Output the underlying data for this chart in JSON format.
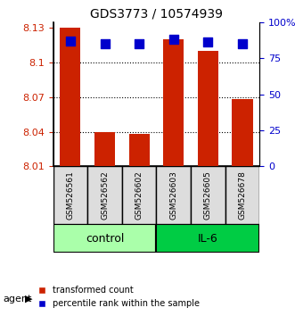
{
  "title": "GDS3773 / 10574939",
  "samples": [
    "GSM526561",
    "GSM526562",
    "GSM526602",
    "GSM526603",
    "GSM526605",
    "GSM526678"
  ],
  "groups": [
    "control",
    "control",
    "control",
    "IL-6",
    "IL-6",
    "IL-6"
  ],
  "transformed_counts": [
    8.13,
    8.04,
    8.038,
    8.12,
    8.11,
    8.068
  ],
  "percentile_ranks": [
    87,
    85,
    85,
    88,
    86,
    85
  ],
  "ylim_left": [
    8.01,
    8.135
  ],
  "ylim_right": [
    0,
    100
  ],
  "yticks_left": [
    8.01,
    8.04,
    8.07,
    8.1,
    8.13
  ],
  "ytick_labels_left": [
    "8.01",
    "8.04",
    "8.07",
    "8.1",
    "8.13"
  ],
  "yticks_right": [
    0,
    25,
    50,
    75,
    100
  ],
  "ytick_labels_right": [
    "0",
    "25",
    "50",
    "75",
    "100%"
  ],
  "bar_color": "#CC2200",
  "dot_color": "#0000CC",
  "control_color": "#AAFFAA",
  "il6_color": "#00CC44",
  "bar_bottom": 8.01,
  "bar_width": 0.6,
  "dot_size": 60,
  "group_label_fontsize": 9,
  "tick_fontsize": 8,
  "title_fontsize": 10,
  "legend_fontsize": 7,
  "agent_label": "agent",
  "control_label": "control",
  "il6_label": "IL-6"
}
